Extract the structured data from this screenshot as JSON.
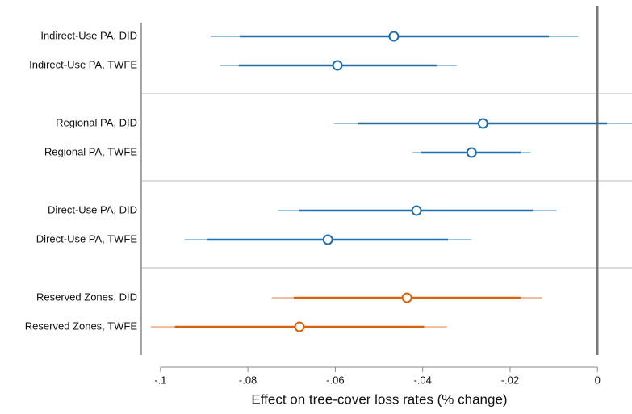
{
  "chart_data": {
    "type": "coefplot",
    "x_label": "Effect on tree-cover loss rates (% change)",
    "categories": [
      "Indirect-Use PA, DID",
      "Indirect-Use PA, TWFE",
      "Regional PA, DID",
      "Regional PA, TWFE",
      "Direct-Use PA, DID",
      "Direct-Use PA, TWFE",
      "Reserved Zones, DID",
      "Reserved Zones, TWFE"
    ],
    "values": [
      -0.0466,
      -0.0595,
      -0.0262,
      -0.0288,
      -0.0414,
      -0.0617,
      -0.0436,
      -0.0682
    ],
    "ci_inner": [
      [
        -0.0819,
        -0.0111
      ],
      [
        -0.0821,
        -0.0368
      ],
      [
        -0.0549,
        0.0022
      ],
      [
        -0.0403,
        -0.0176
      ],
      [
        -0.0682,
        -0.0148
      ],
      [
        -0.0893,
        -0.0342
      ],
      [
        -0.0695,
        -0.0176
      ],
      [
        -0.0967,
        -0.0397
      ]
    ],
    "ci_outer": [
      [
        -0.0885,
        -0.0044
      ],
      [
        -0.0865,
        -0.0322
      ],
      [
        -0.0603,
        0.008
      ],
      [
        -0.0423,
        -0.0153
      ],
      [
        -0.0732,
        -0.0094
      ],
      [
        -0.0945,
        -0.0288
      ],
      [
        -0.0745,
        -0.0126
      ],
      [
        -0.1022,
        -0.0344
      ]
    ],
    "colors": [
      "#1f6fad",
      "#1f6fad",
      "#1f6fad",
      "#1f6fad",
      "#1f6fad",
      "#1f6fad",
      "#d9620b",
      "#d9620b"
    ],
    "outer_colors": [
      "#6db0d8",
      "#6db0d8",
      "#6db0d8",
      "#6db0d8",
      "#6db0d8",
      "#6db0d8",
      "#f2a77a",
      "#f2a77a"
    ],
    "xlim": [
      -0.1044,
      0.0079
    ],
    "xticks": [
      {
        "value": -0.1,
        "label": "-.1"
      },
      {
        "value": -0.08,
        "label": "-.08"
      },
      {
        "value": -0.06,
        "label": "-.06"
      },
      {
        "value": -0.04,
        "label": "-.04"
      },
      {
        "value": -0.02,
        "label": "-.02"
      },
      0
    ]
  }
}
